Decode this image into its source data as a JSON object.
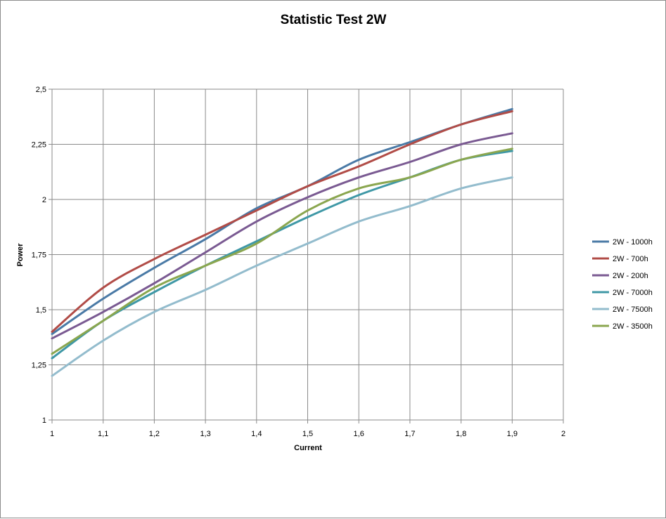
{
  "chart_data": {
    "type": "line",
    "title": "Statistic Test 2W",
    "xlabel": "Current",
    "ylabel": "Power",
    "xlim": [
      1,
      2
    ],
    "ylim": [
      1,
      2.5
    ],
    "x_ticks": [
      "1",
      "1,1",
      "1,2",
      "1,3",
      "1,4",
      "1,5",
      "1,6",
      "1,7",
      "1,8",
      "1,9",
      "2"
    ],
    "y_ticks": [
      "1",
      "1,25",
      "1,5",
      "1,75",
      "2",
      "2,25",
      "2,5"
    ],
    "grid": true,
    "legend_position": "right",
    "x": [
      1.0,
      1.1,
      1.2,
      1.3,
      1.4,
      1.5,
      1.6,
      1.7,
      1.8,
      1.9
    ],
    "series": [
      {
        "name": "2W - 1000h",
        "color": "#4a7aa6",
        "values": [
          1.39,
          1.55,
          1.69,
          1.82,
          1.96,
          2.06,
          2.18,
          2.26,
          2.34,
          2.41
        ]
      },
      {
        "name": "2W - 700h",
        "color": "#b14c47",
        "values": [
          1.4,
          1.6,
          1.73,
          1.84,
          1.95,
          2.06,
          2.15,
          2.25,
          2.34,
          2.4
        ]
      },
      {
        "name": "2W - 200h",
        "color": "#7a5a92",
        "values": [
          1.37,
          1.49,
          1.62,
          1.76,
          1.9,
          2.01,
          2.1,
          2.17,
          2.25,
          2.3
        ]
      },
      {
        "name": "2W - 7000h",
        "color": "#3f98a6",
        "values": [
          1.28,
          1.45,
          1.58,
          1.7,
          1.81,
          1.92,
          2.02,
          2.1,
          2.18,
          2.22
        ]
      },
      {
        "name": "2W - 7500h",
        "color": "#93bccd",
        "values": [
          1.2,
          1.36,
          1.49,
          1.59,
          1.7,
          1.8,
          1.9,
          1.97,
          2.05,
          2.1
        ]
      },
      {
        "name": "2W - 3500h",
        "color": "#8aa64f",
        "values": [
          1.3,
          1.45,
          1.6,
          1.7,
          1.8,
          1.95,
          2.05,
          2.1,
          2.18,
          2.23
        ]
      }
    ]
  }
}
